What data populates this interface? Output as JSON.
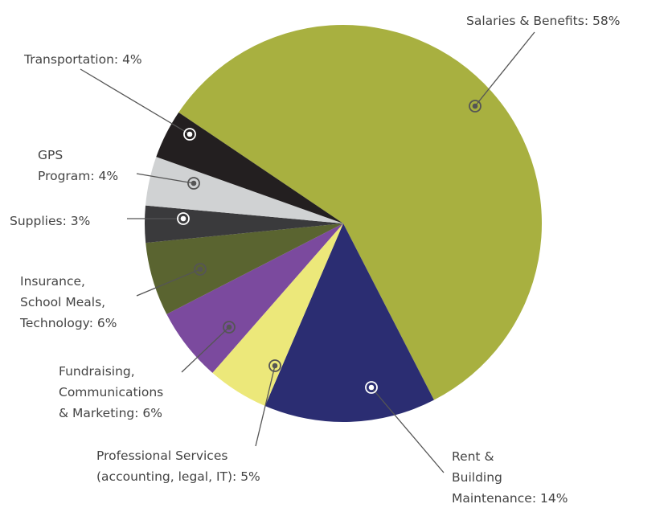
{
  "chart_data": {
    "type": "pie",
    "categories": [
      [
        "Salaries & Benefits: 58%"
      ],
      [
        "Rent &",
        "Building",
        "Maintenance: 14%"
      ],
      [
        "Professional Services",
        "(accounting, legal, IT): 5%"
      ],
      [
        "Fundraising,",
        "Communications",
        "& Marketing: 6%"
      ],
      [
        "Insurance,",
        "School Meals,",
        "Technology: 6%"
      ],
      [
        "Supplies: 3%"
      ],
      [
        "GPS",
        "Program: 4%"
      ],
      [
        "Transportation: 4%"
      ]
    ],
    "values": [
      58,
      14,
      5,
      6,
      6,
      3,
      4,
      4
    ],
    "colors": [
      "#a8b040",
      "#2b2d72",
      "#ece87a",
      "#7b4a9e",
      "#5a6430",
      "#3a3a3c",
      "#d0d2d3",
      "#231f20"
    ]
  }
}
